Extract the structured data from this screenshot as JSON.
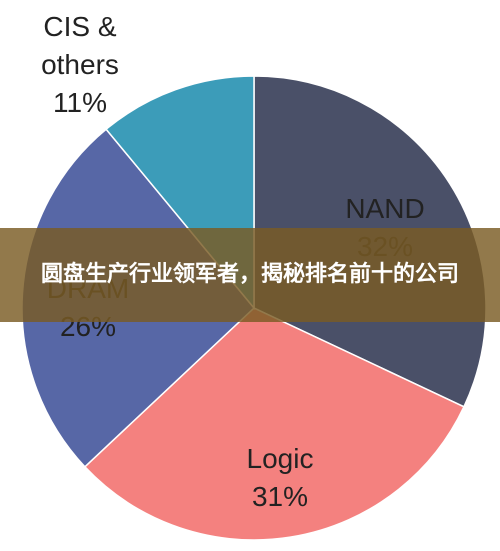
{
  "chart_data": {
    "type": "pie",
    "categories": [
      "NAND",
      "Logic",
      "DRAM",
      "CIS & others"
    ],
    "values": [
      32,
      31,
      26,
      11
    ],
    "value_labels": [
      "32%",
      "31%",
      "26%",
      "11%"
    ],
    "colors": [
      "#4a5068",
      "#f4817f",
      "#5767a6",
      "#3c9cb9"
    ]
  },
  "overlay": {
    "title": "圆盘生产行业领军者，揭秘排名前十的公司"
  }
}
